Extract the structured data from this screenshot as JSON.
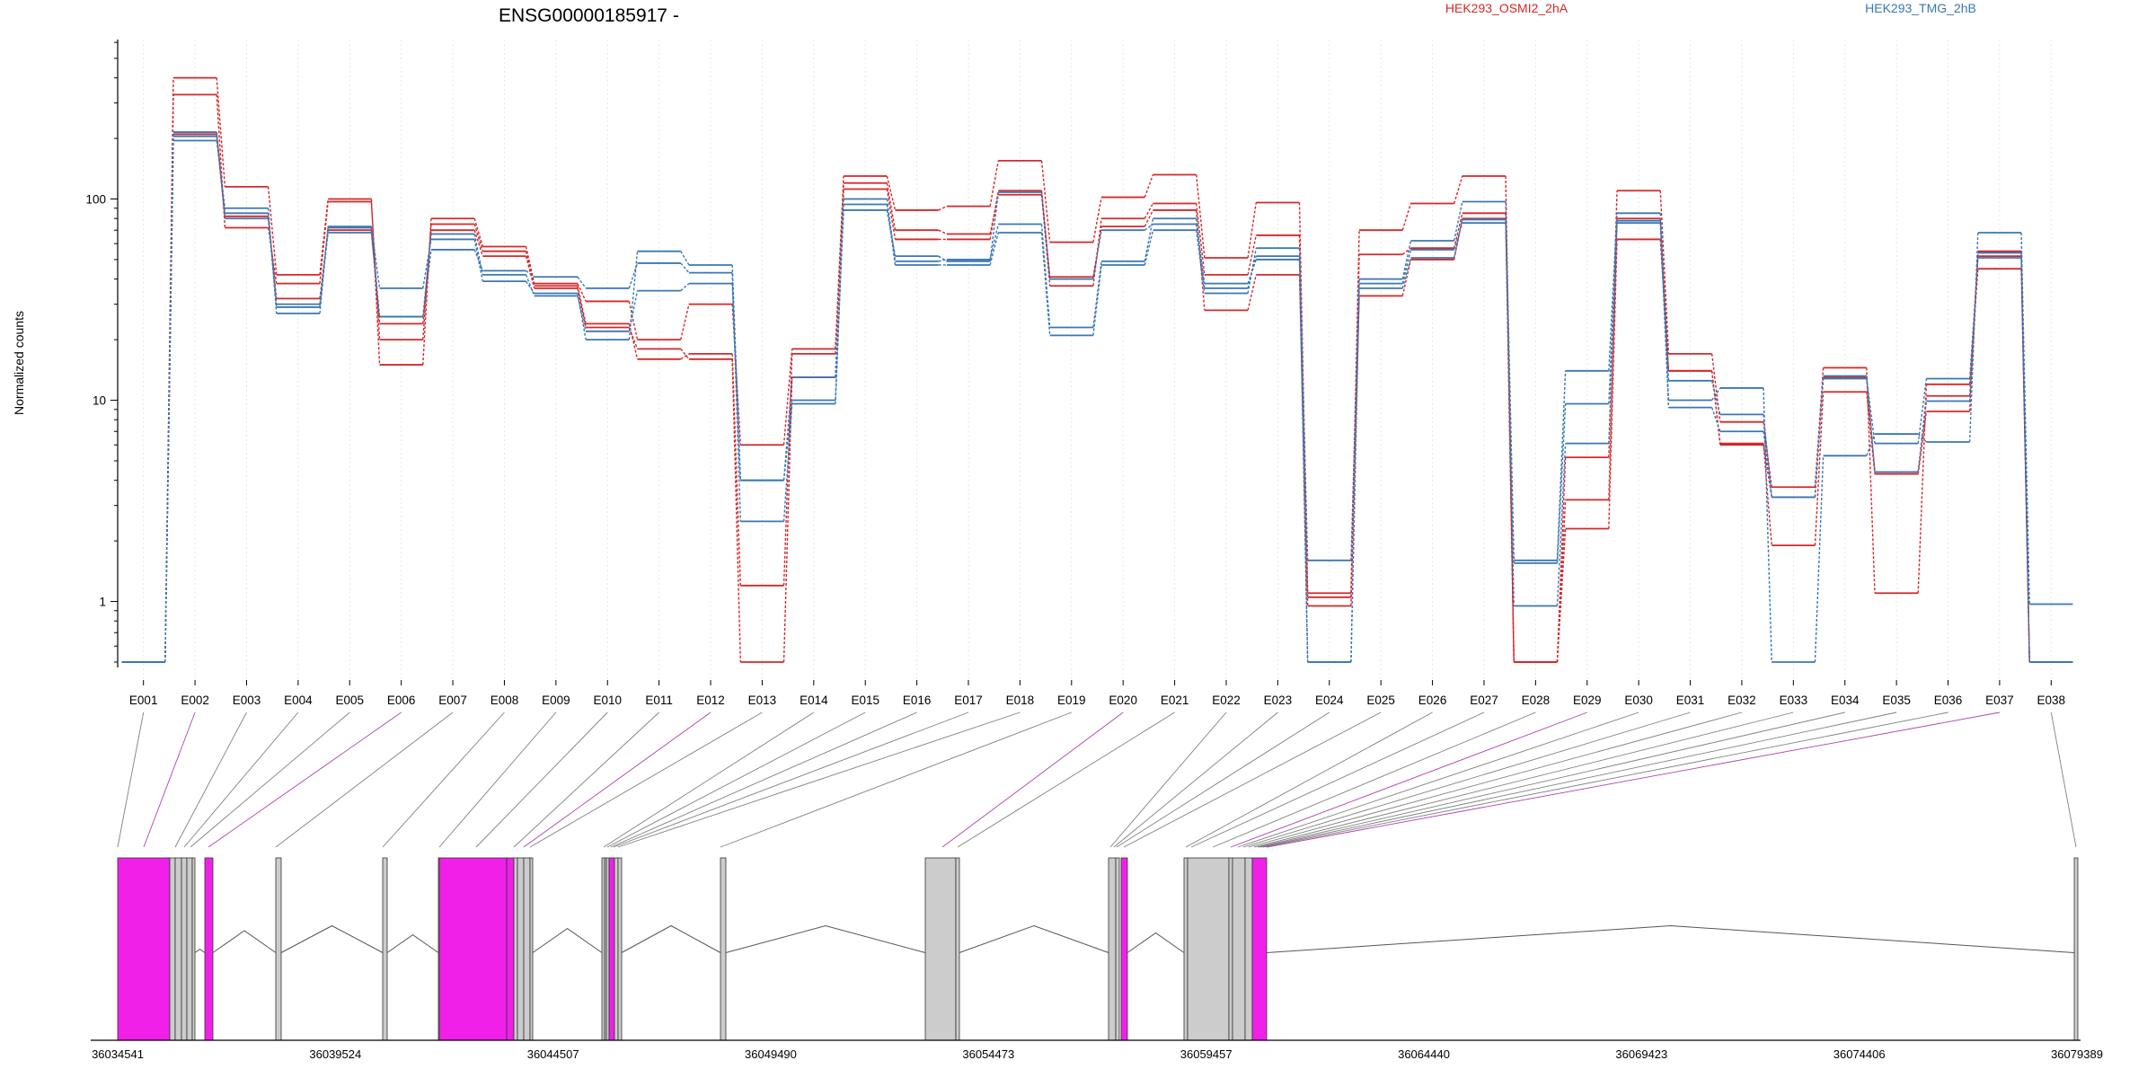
{
  "chart_data": {
    "type": "line",
    "title": "ENSG00000185917 -",
    "ylabel": "Normalized counts",
    "yscale": "log",
    "ylim": [
      0.47,
      620
    ],
    "yticks": [
      {
        "value": 1,
        "label": "1"
      },
      {
        "value": 10,
        "label": "10"
      },
      {
        "value": 100,
        "label": "100"
      }
    ],
    "grid": "vertical dotted per exon",
    "legend": [
      {
        "name": "HEK293_OSMI2_2hA",
        "color": "#d62728"
      },
      {
        "name": "HEK293_TMG_2hB",
        "color": "#3a77b3"
      }
    ],
    "categories": [
      "E001",
      "E002",
      "E003",
      "E004",
      "E005",
      "E006",
      "E007",
      "E008",
      "E009",
      "E010",
      "E011",
      "E012",
      "E013",
      "E014",
      "E015",
      "E016",
      "E017",
      "E018",
      "E019",
      "E020",
      "E021",
      "E022",
      "E023",
      "E024",
      "E025",
      "E026",
      "E027",
      "E028",
      "E029",
      "E030",
      "E031",
      "E032",
      "E033",
      "E034",
      "E035",
      "E036",
      "E037",
      "E038"
    ],
    "series": [
      {
        "group": "HEK293_OSMI2_2hA",
        "color": "#d62728",
        "values": [
          0.5,
          400,
          115,
          42,
          100,
          15,
          80,
          58,
          38,
          31,
          20,
          30,
          6,
          18,
          130,
          88,
          92,
          155,
          61,
          102,
          132,
          51,
          96,
          1.1,
          70,
          95,
          130,
          0.5,
          5.2,
          110,
          17,
          7.8,
          3.7,
          14.5,
          1.1,
          12,
          45,
          0.5
        ]
      },
      {
        "group": "HEK293_OSMI2_2hA",
        "color": "#d62728",
        "values": [
          0.5,
          330,
          72,
          38,
          97,
          20,
          75,
          55,
          37,
          24,
          16,
          17,
          1.2,
          17,
          120,
          70,
          67,
          105,
          37,
          80,
          95,
          42,
          66,
          1.05,
          53,
          57,
          85,
          0.5,
          2.3,
          63,
          14,
          6.1,
          1.9,
          11,
          4.3,
          8.8,
          52,
          0.5
        ]
      },
      {
        "group": "HEK293_OSMI2_2hA",
        "color": "#d62728",
        "values": [
          0.5,
          210,
          82,
          32,
          70,
          24,
          70,
          52,
          36,
          23,
          18,
          16,
          0.5,
          13,
          112,
          63,
          63,
          110,
          41,
          73,
          88,
          28,
          42,
          0.95,
          33,
          50,
          80,
          0.5,
          3.2,
          80,
          14,
          6,
          3.3,
          13,
          4.4,
          10.5,
          55,
          0.5
        ]
      },
      {
        "group": "HEK293_TMG_2hB",
        "color": "#3a77b3",
        "values": [
          0.5,
          195,
          90,
          27,
          73,
          36,
          63,
          39,
          34,
          20,
          55,
          47,
          4,
          10,
          94,
          47,
          47,
          68,
          21,
          47,
          70,
          34,
          57,
          1.6,
          40,
          62,
          97,
          1.6,
          14,
          85,
          10,
          11.5,
          0.5,
          5.3,
          6.8,
          6.2,
          68,
          0.97
        ]
      },
      {
        "group": "HEK293_TMG_2hB",
        "color": "#3a77b3",
        "values": [
          0.5,
          215,
          85,
          30,
          68,
          26,
          56,
          44,
          41,
          36,
          48,
          43,
          2.5,
          9.6,
          100,
          49,
          50,
          75,
          23,
          49,
          80,
          36,
          52,
          0.5,
          36,
          51,
          79,
          1.55,
          9.6,
          78,
          12.5,
          8.5,
          3.3,
          12.8,
          6.1,
          12.8,
          51,
          0.5
        ]
      },
      {
        "group": "HEK293_TMG_2hB",
        "color": "#3a77b3",
        "values": [
          0.5,
          205,
          80,
          29,
          72,
          26,
          67,
          42,
          33,
          22,
          35,
          38,
          4,
          13,
          88,
          52,
          49,
          108,
          40,
          70,
          75,
          38,
          50,
          0.5,
          38,
          56,
          76,
          0.95,
          6.1,
          76,
          9.2,
          7,
          3.3,
          13.2,
          4.4,
          9.9,
          54,
          0.5
        ]
      }
    ],
    "gene_model": {
      "coordinate_range": [
        36034541,
        36079389
      ],
      "coordinate_ticks": [
        "36034541",
        "36039524",
        "36044507",
        "36049490",
        "36054473",
        "36059457",
        "36064440",
        "36069423",
        "36074406",
        "36079389"
      ],
      "colors": {
        "exon_gray": "#cccccc",
        "exon_highlight": "#f020e8",
        "connector_gray": "#808080",
        "connector_highlight": "#b040b0"
      }
    }
  }
}
